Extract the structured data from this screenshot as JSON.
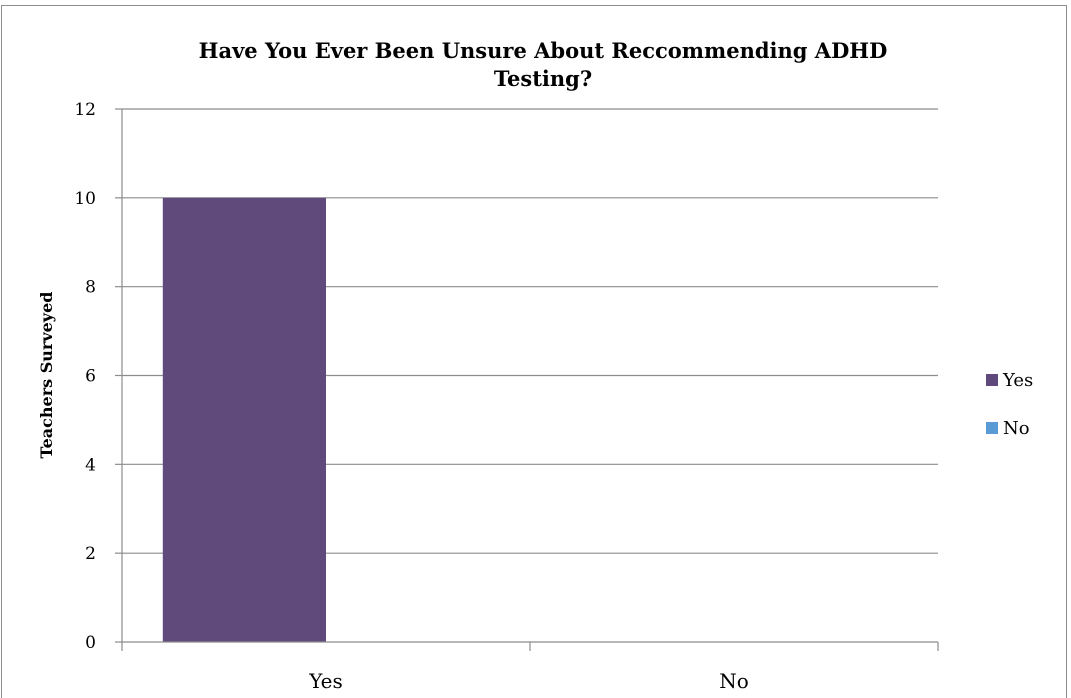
{
  "chart_data": {
    "type": "bar",
    "title_lines": [
      "Have You Ever Been Unsure About Reccommending ADHD",
      "Testing?"
    ],
    "xlabel": "",
    "ylabel": "Teachers Surveyed",
    "categories": [
      "Yes",
      "No"
    ],
    "series": [
      {
        "name": "Yes",
        "color": "#5f4a7b",
        "values": [
          10,
          null
        ]
      },
      {
        "name": "No",
        "color": "#5b9bd5",
        "values": [
          null,
          0
        ]
      }
    ],
    "ylim": [
      0,
      12
    ],
    "yticks": [
      "0",
      "2",
      "4",
      "6",
      "8",
      "10",
      "12"
    ],
    "grid": true,
    "legend_position": "right"
  }
}
